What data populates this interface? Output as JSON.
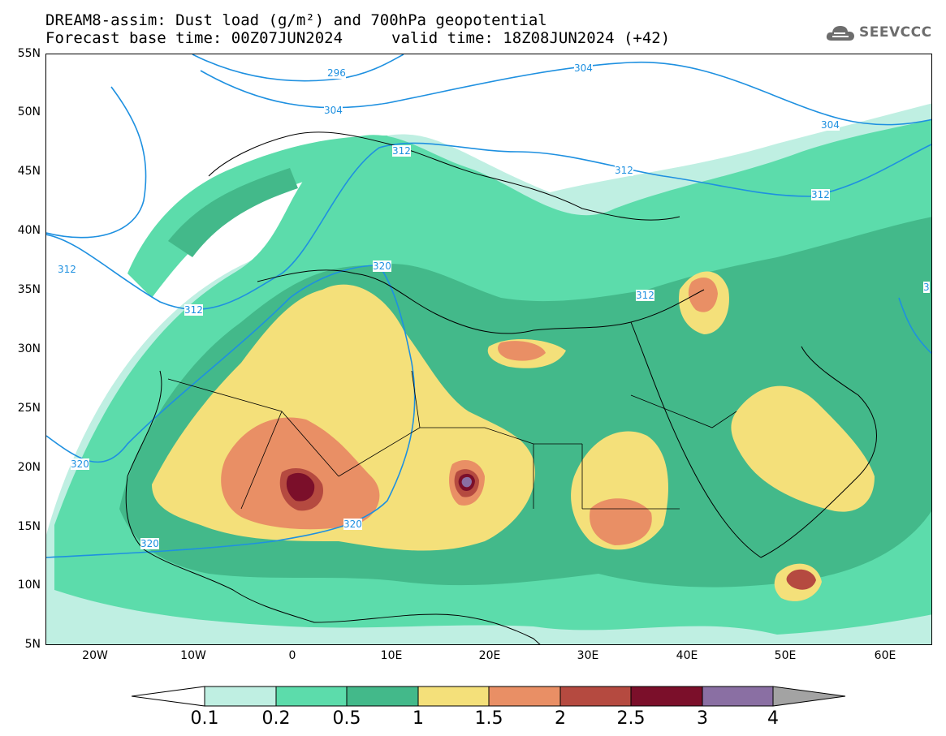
{
  "title": {
    "line1": "DREAM8-assim: Dust load (g/m²) and 700hPa geopotential",
    "line2_left": "Forecast base time: 00Z07JUN2024",
    "line2_right": "valid time: 18Z08JUN2024 (+42)"
  },
  "logo": {
    "text": "SEEVCCC",
    "icon": "cloud-icon"
  },
  "axes": {
    "y_labels": [
      "55N",
      "50N",
      "45N",
      "40N",
      "35N",
      "30N",
      "25N",
      "20N",
      "15N",
      "10N",
      "5N"
    ],
    "x_labels": [
      "20W",
      "10W",
      "0",
      "10E",
      "20E",
      "30E",
      "40E",
      "50E",
      "60E"
    ]
  },
  "contours": {
    "labels": [
      "296",
      "304",
      "304",
      "304",
      "312",
      "312",
      "312",
      "312",
      "312",
      "312",
      "320",
      "320",
      "320",
      "320",
      "3"
    ],
    "color": "#1e90e0"
  },
  "colorbar": {
    "levels": [
      "0.1",
      "0.2",
      "0.5",
      "1",
      "1.5",
      "2",
      "2.5",
      "3",
      "4"
    ],
    "colors": [
      "#ffffff",
      "#bfefe2",
      "#5cdcab",
      "#43b98a",
      "#f4e07a",
      "#e98f65",
      "#b54a40",
      "#7b0f2a",
      "#8a6fa3",
      "#a3a3a3"
    ]
  }
}
